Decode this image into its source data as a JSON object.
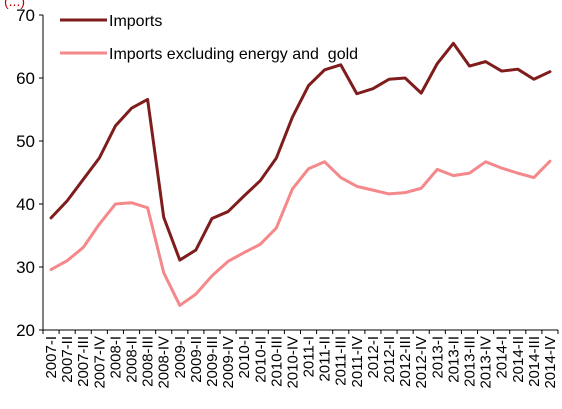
{
  "header_partial": "(...)",
  "chart_data": {
    "type": "line",
    "title": "",
    "xlabel": "",
    "ylabel": "",
    "ylim": [
      20,
      70
    ],
    "yticks": [
      20,
      30,
      40,
      50,
      60,
      70
    ],
    "legend_position": "top-left",
    "grid": false,
    "categories": [
      "2007-I",
      "2007-II",
      "2007-III",
      "2007-IV",
      "2008-I",
      "2008-II",
      "2008-III",
      "2008-IV",
      "2009-I",
      "2009-II",
      "2009-III",
      "2009-IV",
      "2010-I",
      "2010-II",
      "2010-III",
      "2010-IV",
      "2011-I",
      "2011-II",
      "2011-III",
      "2011-IV",
      "2012-I",
      "2012-II",
      "2012-III",
      "2012-IV",
      "2013-I",
      "2013-II",
      "2013-III",
      "2013-IV",
      "2014-I",
      "2014-II",
      "2014-III",
      "2014-IV"
    ],
    "series": [
      {
        "name": "Imports",
        "color": "#7f1d1d",
        "values": [
          37.8,
          40.5,
          43.9,
          47.3,
          52.4,
          55.2,
          56.6,
          37.9,
          31.1,
          32.7,
          37.7,
          38.8,
          41.3,
          43.7,
          47.3,
          53.8,
          58.8,
          61.3,
          62.1,
          57.5,
          58.3,
          59.8,
          60.0,
          57.6,
          62.3,
          65.5,
          61.9,
          62.6,
          61.1,
          61.4,
          59.8,
          61.0
        ]
      },
      {
        "name": "Imports excluding energy and  gold",
        "color": "#f4888a",
        "values": [
          29.6,
          31.0,
          33.1,
          36.8,
          40.0,
          40.2,
          39.4,
          29.1,
          23.9,
          25.7,
          28.6,
          30.9,
          32.3,
          33.6,
          36.2,
          42.4,
          45.6,
          46.7,
          44.2,
          42.8,
          42.2,
          41.6,
          41.8,
          42.5,
          45.5,
          44.5,
          44.9,
          46.7,
          45.7,
          44.9,
          44.2,
          46.8
        ]
      }
    ]
  }
}
